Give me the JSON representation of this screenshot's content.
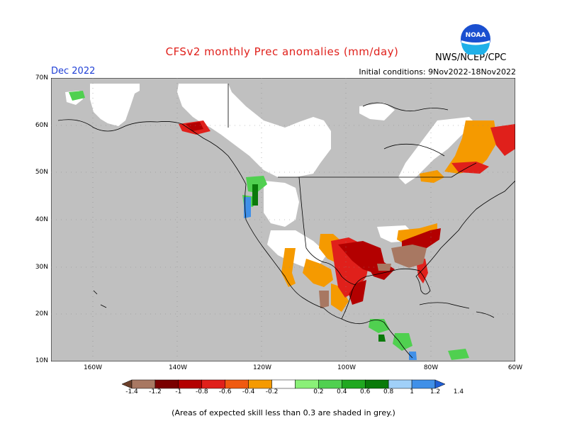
{
  "header": {
    "title": "CFSv2 monthly Prec anomalies (mm/day)",
    "month": "Dec 2022",
    "initial_conditions": "Initial conditions: 9Nov2022-18Nov2022",
    "agency": "NWS/NCEP/CPC",
    "logo_text": "NOAA"
  },
  "map": {
    "lat_labels": [
      "70N",
      "60N",
      "50N",
      "40N",
      "30N",
      "20N",
      "10N"
    ],
    "lon_labels": [
      "160W",
      "140W",
      "120W",
      "100W",
      "80W",
      "60W"
    ]
  },
  "colorbar": {
    "labels": [
      "-1.4",
      "-1.2",
      "-1",
      "-0.8",
      "-0.6",
      "-0.4",
      "-0.2",
      "0.2",
      "0.4",
      "0.6",
      "0.8",
      "1",
      "1.2",
      "1.4"
    ],
    "colors": [
      "#6b3f2a",
      "#a87862",
      "#7a0000",
      "#b30000",
      "#e0201b",
      "#f05a10",
      "#f59a00",
      "#ffffff",
      "#8af078",
      "#50d050",
      "#20a820",
      "#0a7a0a",
      "#a0d0f8",
      "#4090e8",
      "#1f5fd6"
    ]
  },
  "footer": {
    "note": "(Areas of expected skill less than 0.3 are shaded in grey.)"
  }
}
